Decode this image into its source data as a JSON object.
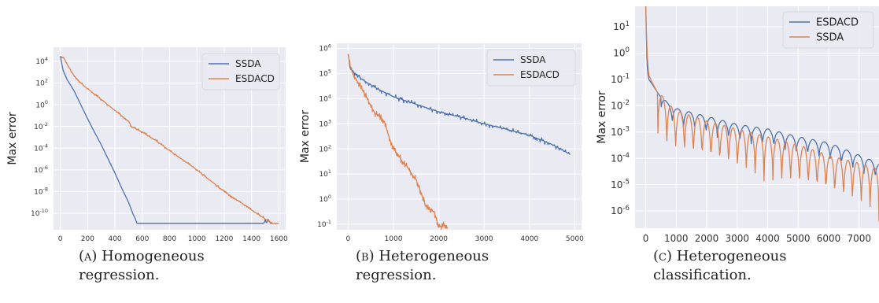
{
  "chart_data": [
    {
      "type": "line",
      "xlabel": "Ideal time",
      "ylabel": "Max error",
      "yscale": "log",
      "xlim": [
        -50,
        1650
      ],
      "ylim": [
        3e-12,
        200000.0
      ],
      "x_ticks": [
        0,
        200,
        400,
        600,
        800,
        1000,
        1200,
        1400,
        1600
      ],
      "x_tick_labels": [
        "0",
        "200",
        "400",
        "600",
        "800",
        "1000",
        "1200",
        "1400",
        "1600"
      ],
      "y_ticks": [
        10000.0,
        100.0,
        1.0,
        0.01,
        0.0001,
        1e-06,
        1e-08,
        1e-10
      ],
      "y_tick_labels": [
        [
          "10",
          "4"
        ],
        [
          "10",
          "2"
        ],
        [
          "10",
          "0"
        ],
        [
          "10",
          "-2"
        ],
        [
          "10",
          "-4"
        ],
        [
          "10",
          "-6"
        ],
        [
          "10",
          "-8"
        ],
        [
          "10",
          "-10"
        ]
      ],
      "grid": true,
      "legend_position": "top-right",
      "series": [
        {
          "name": "SSDA",
          "color": "#4c72b0",
          "jitter": 0,
          "x": [
            0,
            20,
            50,
            100,
            150,
            200,
            250,
            300,
            350,
            400,
            450,
            500,
            530,
            550,
            560,
            1490,
            1500,
            1510,
            1520,
            1540,
            1560
          ],
          "y": [
            30000,
            1500,
            200,
            20,
            1,
            0.05,
            0.003,
            0.0002,
            1e-05,
            5e-07,
            2e-08,
            1e-09,
            1e-10,
            3e-11,
            1.2e-11,
            1.2e-11,
            2.5e-11,
            1.2e-11,
            3e-11,
            1.2e-11,
            1.2e-11
          ]
        },
        {
          "name": "ESDACD",
          "color": "#dd8452",
          "jitter": 0.25,
          "x": [
            0,
            25,
            50,
            100,
            150,
            200,
            300,
            400,
            500,
            520,
            600,
            700,
            800,
            900,
            1000,
            1100,
            1200,
            1300,
            1400,
            1450,
            1500,
            1520,
            1540,
            1560,
            1580,
            1600
          ],
          "y": [
            30000,
            20000,
            5000,
            500,
            100,
            30,
            3,
            0.3,
            0.03,
            0.01,
            0.003,
            0.0005,
            6e-05,
            8e-06,
            1e-06,
            1e-07,
            1e-08,
            1.5e-09,
            2e-10,
            8e-11,
            3e-11,
            2e-11,
            1.5e-11,
            1.2e-11,
            1.2e-11,
            1.2e-11
          ]
        }
      ]
    },
    {
      "type": "line",
      "xlabel": "Ideal time",
      "ylabel": "Max error",
      "yscale": "log",
      "xlim": [
        -250,
        5150
      ],
      "ylim": [
        0.06,
        1600000.0
      ],
      "x_ticks": [
        0,
        1000,
        2000,
        3000,
        4000,
        5000
      ],
      "x_tick_labels": [
        "0",
        "1000",
        "2000",
        "3000",
        "4000",
        "5000"
      ],
      "y_ticks": [
        1000000.0,
        100000.0,
        10000.0,
        1000.0,
        100.0,
        10.0,
        1.0,
        0.1
      ],
      "y_tick_labels": [
        [
          "10",
          "6"
        ],
        [
          "10",
          "5"
        ],
        [
          "10",
          "4"
        ],
        [
          "10",
          "3"
        ],
        [
          "10",
          "2"
        ],
        [
          "10",
          "1"
        ],
        [
          "10",
          "0"
        ],
        [
          "10",
          "-1"
        ]
      ],
      "grid": true,
      "legend_position": "top-right",
      "series": [
        {
          "name": "SSDA",
          "color": "#4c72b0",
          "jitter": 0.22,
          "x": [
            0,
            50,
            100,
            200,
            300,
            500,
            700,
            1000,
            1500,
            2000,
            2500,
            3000,
            3500,
            4000,
            4500,
            4900
          ],
          "y": [
            600000,
            150000,
            120000,
            90000,
            60000,
            35000,
            22000,
            12000,
            6000,
            3000,
            1800,
            1000,
            600,
            350,
            150,
            60
          ]
        },
        {
          "name": "ESDACD",
          "color": "#dd8452",
          "jitter": 0.25,
          "x": [
            0,
            50,
            100,
            200,
            300,
            400,
            500,
            600,
            700,
            800,
            900,
            1000,
            1100,
            1200,
            1300,
            1400,
            1500,
            1600,
            1700,
            1800,
            1900,
            2000,
            2050,
            2100,
            2150,
            2200
          ],
          "y": [
            600000,
            200000,
            100000,
            50000,
            25000,
            12000,
            5000,
            2500,
            2000,
            1200,
            300,
            100,
            60,
            30,
            20,
            10,
            6,
            2,
            0.6,
            0.4,
            0.3,
            0.08,
            0.08,
            0.1,
            0.07,
            0.07
          ]
        }
      ]
    },
    {
      "type": "line",
      "xlabel": "Ideal time",
      "ylabel": "Max error",
      "yscale": "log",
      "xlim": [
        -350,
        7650
      ],
      "ylim": [
        2.2e-07,
        60
      ],
      "x_ticks": [
        0,
        1000,
        2000,
        3000,
        4000,
        5000,
        6000,
        7000
      ],
      "x_tick_labels": [
        "0",
        "1000",
        "2000",
        "3000",
        "4000",
        "5000",
        "6000",
        "7000"
      ],
      "y_ticks": [
        10.0,
        1.0,
        0.1,
        0.01,
        0.001,
        0.0001,
        1e-05,
        1e-06
      ],
      "y_tick_labels": [
        [
          "10",
          "1"
        ],
        [
          "10",
          "0"
        ],
        [
          "10",
          "-1"
        ],
        [
          "10",
          "-2"
        ],
        [
          "10",
          "-3"
        ],
        [
          "10",
          "-4"
        ],
        [
          "10",
          "-5"
        ],
        [
          "10",
          "-6"
        ]
      ],
      "grid": true,
      "legend_position": "top-right",
      "series": [
        {
          "name": "ESDACD",
          "color": "#4c72b0",
          "oscillating": true,
          "osc_period": 370,
          "osc_depth": 0.8,
          "osc_start": 500,
          "x": [
            0,
            30,
            60,
            100,
            200,
            400,
            700,
            1000,
            2000,
            3000,
            4000,
            5000,
            6000,
            7000,
            7650
          ],
          "y": [
            60,
            1,
            0.2,
            0.1,
            0.07,
            0.03,
            0.01,
            0.006,
            0.003,
            0.0015,
            0.001,
            0.0005,
            0.0003,
            0.0001,
            5e-05
          ]
        },
        {
          "name": "SSDA",
          "color": "#dd8452",
          "oscillating": true,
          "osc_period": 290,
          "osc_depth": 2.0,
          "osc_start": 400,
          "x": [
            0,
            30,
            60,
            100,
            200,
            400,
            700,
            1000,
            2000,
            3000,
            4000,
            5000,
            6000,
            7000,
            7650
          ],
          "y": [
            60,
            3,
            0.5,
            0.15,
            0.08,
            0.03,
            0.01,
            0.005,
            0.002,
            0.001,
            0.0005,
            0.00025,
            0.0001,
            5e-05,
            3e-05
          ]
        }
      ]
    }
  ],
  "captions": [
    {
      "tag": "(a)",
      "line1": "Homogeneous",
      "line2": "regression."
    },
    {
      "tag": "(b)",
      "line1": "Heterogeneous",
      "line2": "regression."
    },
    {
      "tag": "(c)",
      "line1": "Heterogeneous",
      "line2": "classification."
    }
  ]
}
